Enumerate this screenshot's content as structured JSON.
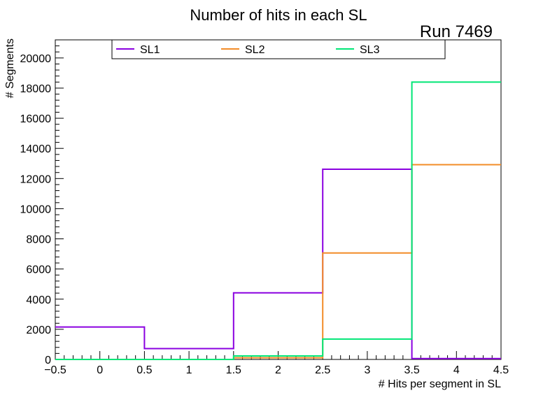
{
  "chart_data": {
    "type": "histogram",
    "title": "Number of hits in each SL",
    "run_label": "Run 7469",
    "xlabel": "# Hits per segment in SL",
    "ylabel": "# Segments",
    "xlim": [
      -0.5,
      4.5
    ],
    "ylim": [
      0,
      21200
    ],
    "x_ticks": [
      "−0.5",
      "0",
      "0.5",
      "1",
      "1.5",
      "2",
      "2.5",
      "3",
      "3.5",
      "4",
      "4.5"
    ],
    "y_ticks": [
      "0",
      "2000",
      "4000",
      "6000",
      "8000",
      "10000",
      "12000",
      "14000",
      "16000",
      "18000",
      "20000"
    ],
    "bin_edges": [
      -0.5,
      0.5,
      1.5,
      2.5,
      3.5,
      4.5
    ],
    "series": [
      {
        "name": "SL1",
        "color": "#8a00e0",
        "values": [
          2150,
          720,
          4420,
          12620,
          60
        ]
      },
      {
        "name": "SL2",
        "color": "#f28c28",
        "values": [
          0,
          0,
          110,
          7060,
          12920
        ]
      },
      {
        "name": "SL3",
        "color": "#00e676",
        "values": [
          0,
          0,
          230,
          1350,
          18400
        ]
      }
    ]
  }
}
